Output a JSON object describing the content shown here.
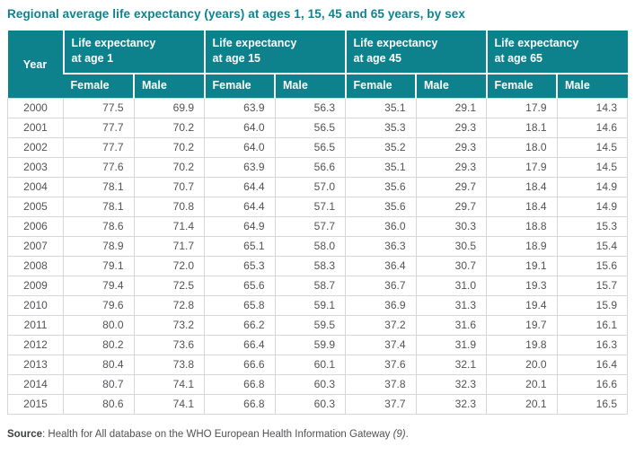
{
  "title": "Regional average life expectancy (years) at ages 1, 15, 45 and 65 years, by sex",
  "colors": {
    "accent_teal": "#0E828C",
    "grid_border": "#D6D7D8",
    "body_text": "#515254"
  },
  "table": {
    "year_header": "Year",
    "groups": [
      {
        "line1": "Life expectancy",
        "line2": "at age 1"
      },
      {
        "line1": "Life expectancy",
        "line2": "at age 15"
      },
      {
        "line1": "Life expectancy",
        "line2": "at age 45"
      },
      {
        "line1": "Life expectancy",
        "line2": "at age 65"
      }
    ],
    "sub_headers": [
      "Female",
      "Male"
    ],
    "rows": [
      {
        "year": "2000",
        "values": [
          "77.5",
          "69.9",
          "63.9",
          "56.3",
          "35.1",
          "29.1",
          "17.9",
          "14.3"
        ]
      },
      {
        "year": "2001",
        "values": [
          "77.7",
          "70.2",
          "64.0",
          "56.5",
          "35.3",
          "29.3",
          "18.1",
          "14.6"
        ]
      },
      {
        "year": "2002",
        "values": [
          "77.7",
          "70.2",
          "64.0",
          "56.5",
          "35.2",
          "29.3",
          "18.0",
          "14.5"
        ]
      },
      {
        "year": "2003",
        "values": [
          "77.6",
          "70.2",
          "63.9",
          "56.6",
          "35.1",
          "29.3",
          "17.9",
          "14.5"
        ]
      },
      {
        "year": "2004",
        "values": [
          "78.1",
          "70.7",
          "64.4",
          "57.0",
          "35.6",
          "29.7",
          "18.4",
          "14.9"
        ]
      },
      {
        "year": "2005",
        "values": [
          "78.1",
          "70.8",
          "64.4",
          "57.1",
          "35.6",
          "29.7",
          "18.4",
          "14.9"
        ]
      },
      {
        "year": "2006",
        "values": [
          "78.6",
          "71.4",
          "64.9",
          "57.7",
          "36.0",
          "30.3",
          "18.8",
          "15.3"
        ]
      },
      {
        "year": "2007",
        "values": [
          "78.9",
          "71.7",
          "65.1",
          "58.0",
          "36.3",
          "30.5",
          "18.9",
          "15.4"
        ]
      },
      {
        "year": "2008",
        "values": [
          "79.1",
          "72.0",
          "65.3",
          "58.3",
          "36.4",
          "30.7",
          "19.1",
          "15.6"
        ]
      },
      {
        "year": "2009",
        "values": [
          "79.4",
          "72.5",
          "65.6",
          "58.7",
          "36.7",
          "31.0",
          "19.3",
          "15.7"
        ]
      },
      {
        "year": "2010",
        "values": [
          "79.6",
          "72.8",
          "65.8",
          "59.1",
          "36.9",
          "31.3",
          "19.4",
          "15.9"
        ]
      },
      {
        "year": "2011",
        "values": [
          "80.0",
          "73.2",
          "66.2",
          "59.5",
          "37.2",
          "31.6",
          "19.7",
          "16.1"
        ]
      },
      {
        "year": "2012",
        "values": [
          "80.2",
          "73.6",
          "66.4",
          "59.9",
          "37.4",
          "31.9",
          "19.8",
          "16.3"
        ]
      },
      {
        "year": "2013",
        "values": [
          "80.4",
          "73.8",
          "66.6",
          "60.1",
          "37.6",
          "32.1",
          "20.0",
          "16.4"
        ]
      },
      {
        "year": "2014",
        "values": [
          "80.7",
          "74.1",
          "66.8",
          "60.3",
          "37.8",
          "32.3",
          "20.1",
          "16.6"
        ]
      },
      {
        "year": "2015",
        "values": [
          "80.6",
          "74.1",
          "66.8",
          "60.3",
          "37.7",
          "32.3",
          "20.1",
          "16.5"
        ]
      }
    ]
  },
  "source": {
    "label": "Source",
    "text": ": Health for All database on the WHO European Health Information Gateway ",
    "ref": "(9)",
    "period": "."
  }
}
